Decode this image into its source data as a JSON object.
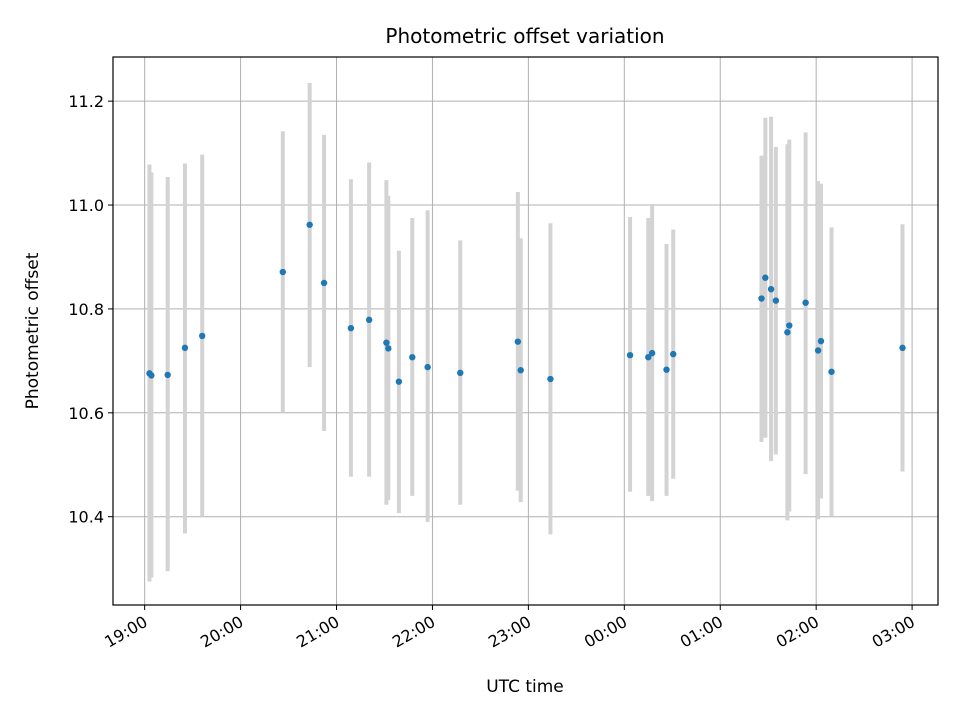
{
  "chart_data": {
    "type": "scatter",
    "title": "Photometric offset variation",
    "xlabel": "UTC time",
    "ylabel": "Photometric offset",
    "x_unit": "hours since 19:00 UTC",
    "xlim": [
      -0.33,
      8.27
    ],
    "ylim": [
      10.23,
      11.285
    ],
    "x_ticks": [
      {
        "value": 0,
        "label": "19:00"
      },
      {
        "value": 1,
        "label": "20:00"
      },
      {
        "value": 2,
        "label": "21:00"
      },
      {
        "value": 3,
        "label": "22:00"
      },
      {
        "value": 4,
        "label": "23:00"
      },
      {
        "value": 5,
        "label": "00:00"
      },
      {
        "value": 6,
        "label": "01:00"
      },
      {
        "value": 7,
        "label": "02:00"
      },
      {
        "value": 8,
        "label": "03:00"
      }
    ],
    "y_ticks": [
      {
        "value": 10.4,
        "label": "10.4"
      },
      {
        "value": 10.6,
        "label": "10.6"
      },
      {
        "value": 10.8,
        "label": "10.8"
      },
      {
        "value": 11.0,
        "label": "11.0"
      },
      {
        "value": 11.2,
        "label": "11.2"
      }
    ],
    "grid": true,
    "marker_color": "#1f77b4",
    "errorbar_color": "#d3d3d3",
    "points": [
      {
        "x": 0.05,
        "y": 10.676,
        "lo": 10.275,
        "hi": 11.078
      },
      {
        "x": 0.07,
        "y": 10.672,
        "lo": 10.283,
        "hi": 11.063
      },
      {
        "x": 0.24,
        "y": 10.673,
        "lo": 10.295,
        "hi": 11.054
      },
      {
        "x": 0.42,
        "y": 10.725,
        "lo": 10.368,
        "hi": 11.08
      },
      {
        "x": 0.6,
        "y": 10.748,
        "lo": 10.4,
        "hi": 11.097
      },
      {
        "x": 1.44,
        "y": 10.871,
        "lo": 10.6,
        "hi": 11.142
      },
      {
        "x": 1.72,
        "y": 10.962,
        "lo": 10.688,
        "hi": 11.235
      },
      {
        "x": 1.87,
        "y": 10.85,
        "lo": 10.565,
        "hi": 11.135
      },
      {
        "x": 2.15,
        "y": 10.763,
        "lo": 10.477,
        "hi": 11.05
      },
      {
        "x": 2.34,
        "y": 10.779,
        "lo": 10.477,
        "hi": 11.082
      },
      {
        "x": 2.52,
        "y": 10.735,
        "lo": 10.423,
        "hi": 11.048
      },
      {
        "x": 2.54,
        "y": 10.724,
        "lo": 10.432,
        "hi": 11.018
      },
      {
        "x": 2.65,
        "y": 10.66,
        "lo": 10.407,
        "hi": 10.912
      },
      {
        "x": 2.79,
        "y": 10.707,
        "lo": 10.44,
        "hi": 10.975
      },
      {
        "x": 2.95,
        "y": 10.688,
        "lo": 10.39,
        "hi": 10.99
      },
      {
        "x": 3.29,
        "y": 10.677,
        "lo": 10.423,
        "hi": 10.932
      },
      {
        "x": 3.89,
        "y": 10.737,
        "lo": 10.45,
        "hi": 11.025
      },
      {
        "x": 3.92,
        "y": 10.682,
        "lo": 10.428,
        "hi": 10.936
      },
      {
        "x": 4.23,
        "y": 10.665,
        "lo": 10.366,
        "hi": 10.965
      },
      {
        "x": 5.06,
        "y": 10.711,
        "lo": 10.448,
        "hi": 10.977
      },
      {
        "x": 5.25,
        "y": 10.707,
        "lo": 10.44,
        "hi": 10.975
      },
      {
        "x": 5.29,
        "y": 10.715,
        "lo": 10.43,
        "hi": 11.002
      },
      {
        "x": 5.44,
        "y": 10.683,
        "lo": 10.44,
        "hi": 10.925
      },
      {
        "x": 5.51,
        "y": 10.713,
        "lo": 10.473,
        "hi": 10.953
      },
      {
        "x": 6.43,
        "y": 10.82,
        "lo": 10.544,
        "hi": 11.095
      },
      {
        "x": 6.47,
        "y": 10.86,
        "lo": 10.552,
        "hi": 11.168
      },
      {
        "x": 6.53,
        "y": 10.838,
        "lo": 10.507,
        "hi": 11.17
      },
      {
        "x": 6.58,
        "y": 10.816,
        "lo": 10.52,
        "hi": 11.112
      },
      {
        "x": 6.7,
        "y": 10.755,
        "lo": 10.393,
        "hi": 11.117
      },
      {
        "x": 6.72,
        "y": 10.768,
        "lo": 10.41,
        "hi": 11.126
      },
      {
        "x": 6.89,
        "y": 10.812,
        "lo": 10.482,
        "hi": 11.14
      },
      {
        "x": 7.02,
        "y": 10.72,
        "lo": 10.395,
        "hi": 11.046
      },
      {
        "x": 7.05,
        "y": 10.738,
        "lo": 10.435,
        "hi": 11.041
      },
      {
        "x": 7.16,
        "y": 10.679,
        "lo": 10.4,
        "hi": 10.957
      },
      {
        "x": 7.9,
        "y": 10.725,
        "lo": 10.487,
        "hi": 10.963
      }
    ]
  }
}
